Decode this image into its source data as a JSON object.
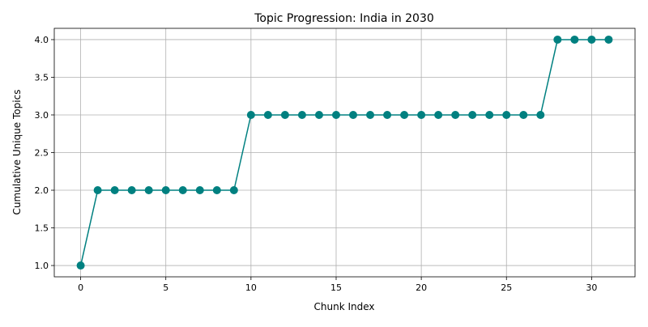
{
  "chart_data": {
    "type": "line",
    "title": "Topic Progression: India in 2030",
    "xlabel": "Chunk Index",
    "ylabel": "Cumulative Unique Topics",
    "xlim": [
      -1.55,
      32.55
    ],
    "ylim": [
      0.85,
      4.15
    ],
    "x_ticks": [
      0,
      5,
      10,
      15,
      20,
      25,
      30
    ],
    "x_tick_labels": [
      "0",
      "5",
      "10",
      "15",
      "20",
      "25",
      "30"
    ],
    "y_ticks": [
      1.0,
      1.5,
      2.0,
      2.5,
      3.0,
      3.5,
      4.0
    ],
    "y_tick_labels": [
      "1.0",
      "1.5",
      "2.0",
      "2.5",
      "3.0",
      "3.5",
      "4.0"
    ],
    "grid": true,
    "marker": "circle",
    "color": "#008080",
    "x": [
      0,
      1,
      2,
      3,
      4,
      5,
      6,
      7,
      8,
      9,
      10,
      11,
      12,
      13,
      14,
      15,
      16,
      17,
      18,
      19,
      20,
      21,
      22,
      23,
      24,
      25,
      26,
      27,
      28,
      29,
      30,
      31
    ],
    "series": [
      {
        "values": [
          1,
          2,
          2,
          2,
          2,
          2,
          2,
          2,
          2,
          2,
          3,
          3,
          3,
          3,
          3,
          3,
          3,
          3,
          3,
          3,
          3,
          3,
          3,
          3,
          3,
          3,
          3,
          3,
          4,
          4,
          4,
          4
        ]
      }
    ]
  }
}
